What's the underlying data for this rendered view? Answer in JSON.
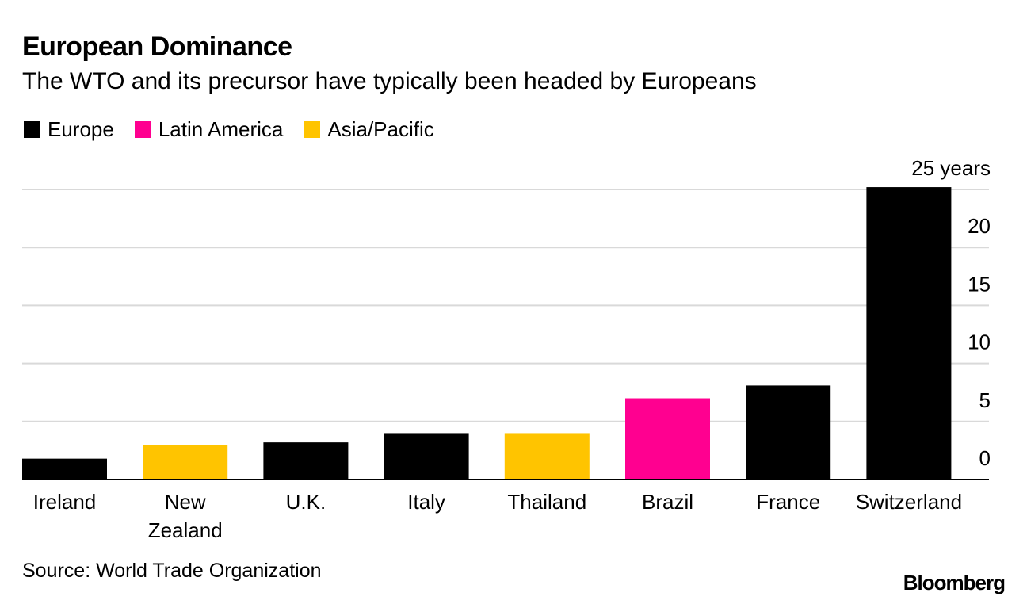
{
  "chart_data": {
    "type": "bar",
    "title": "European Dominance",
    "subtitle": "The WTO and its precursor have typically been headed by Europeans",
    "categories": [
      "Ireland",
      "New Zealand",
      "U.K.",
      "Italy",
      "Thailand",
      "Brazil",
      "France",
      "Switzerland"
    ],
    "category_lines": [
      [
        "Ireland"
      ],
      [
        "New",
        "Zealand"
      ],
      [
        "U.K."
      ],
      [
        "Italy"
      ],
      [
        "Thailand"
      ],
      [
        "Brazil"
      ],
      [
        "France"
      ],
      [
        "Switzerland"
      ]
    ],
    "values": [
      1.8,
      3.0,
      3.2,
      4.0,
      4.0,
      7.0,
      8.1,
      25.2
    ],
    "regions": [
      "Europe",
      "Asia/Pacific",
      "Europe",
      "Europe",
      "Asia/Pacific",
      "Latin America",
      "Europe",
      "Europe"
    ],
    "legend": [
      {
        "label": "Europe",
        "color": "#000000"
      },
      {
        "label": "Latin America",
        "color": "#ff0090"
      },
      {
        "label": "Asia/Pacific",
        "color": "#ffc400"
      }
    ],
    "yaxis": {
      "ticks": [
        0,
        5,
        10,
        15,
        20,
        25
      ],
      "tick_labels": [
        "0",
        "5",
        "10",
        "15",
        "20",
        "25 years"
      ],
      "ylim": [
        0,
        25
      ],
      "position": "right"
    },
    "xlabel": "",
    "ylabel": "years"
  },
  "footer": {
    "source": "Source: World Trade Organization",
    "brand": "Bloomberg"
  },
  "colors": {
    "gridline": "#d9d9d9",
    "axis": "#000000"
  }
}
